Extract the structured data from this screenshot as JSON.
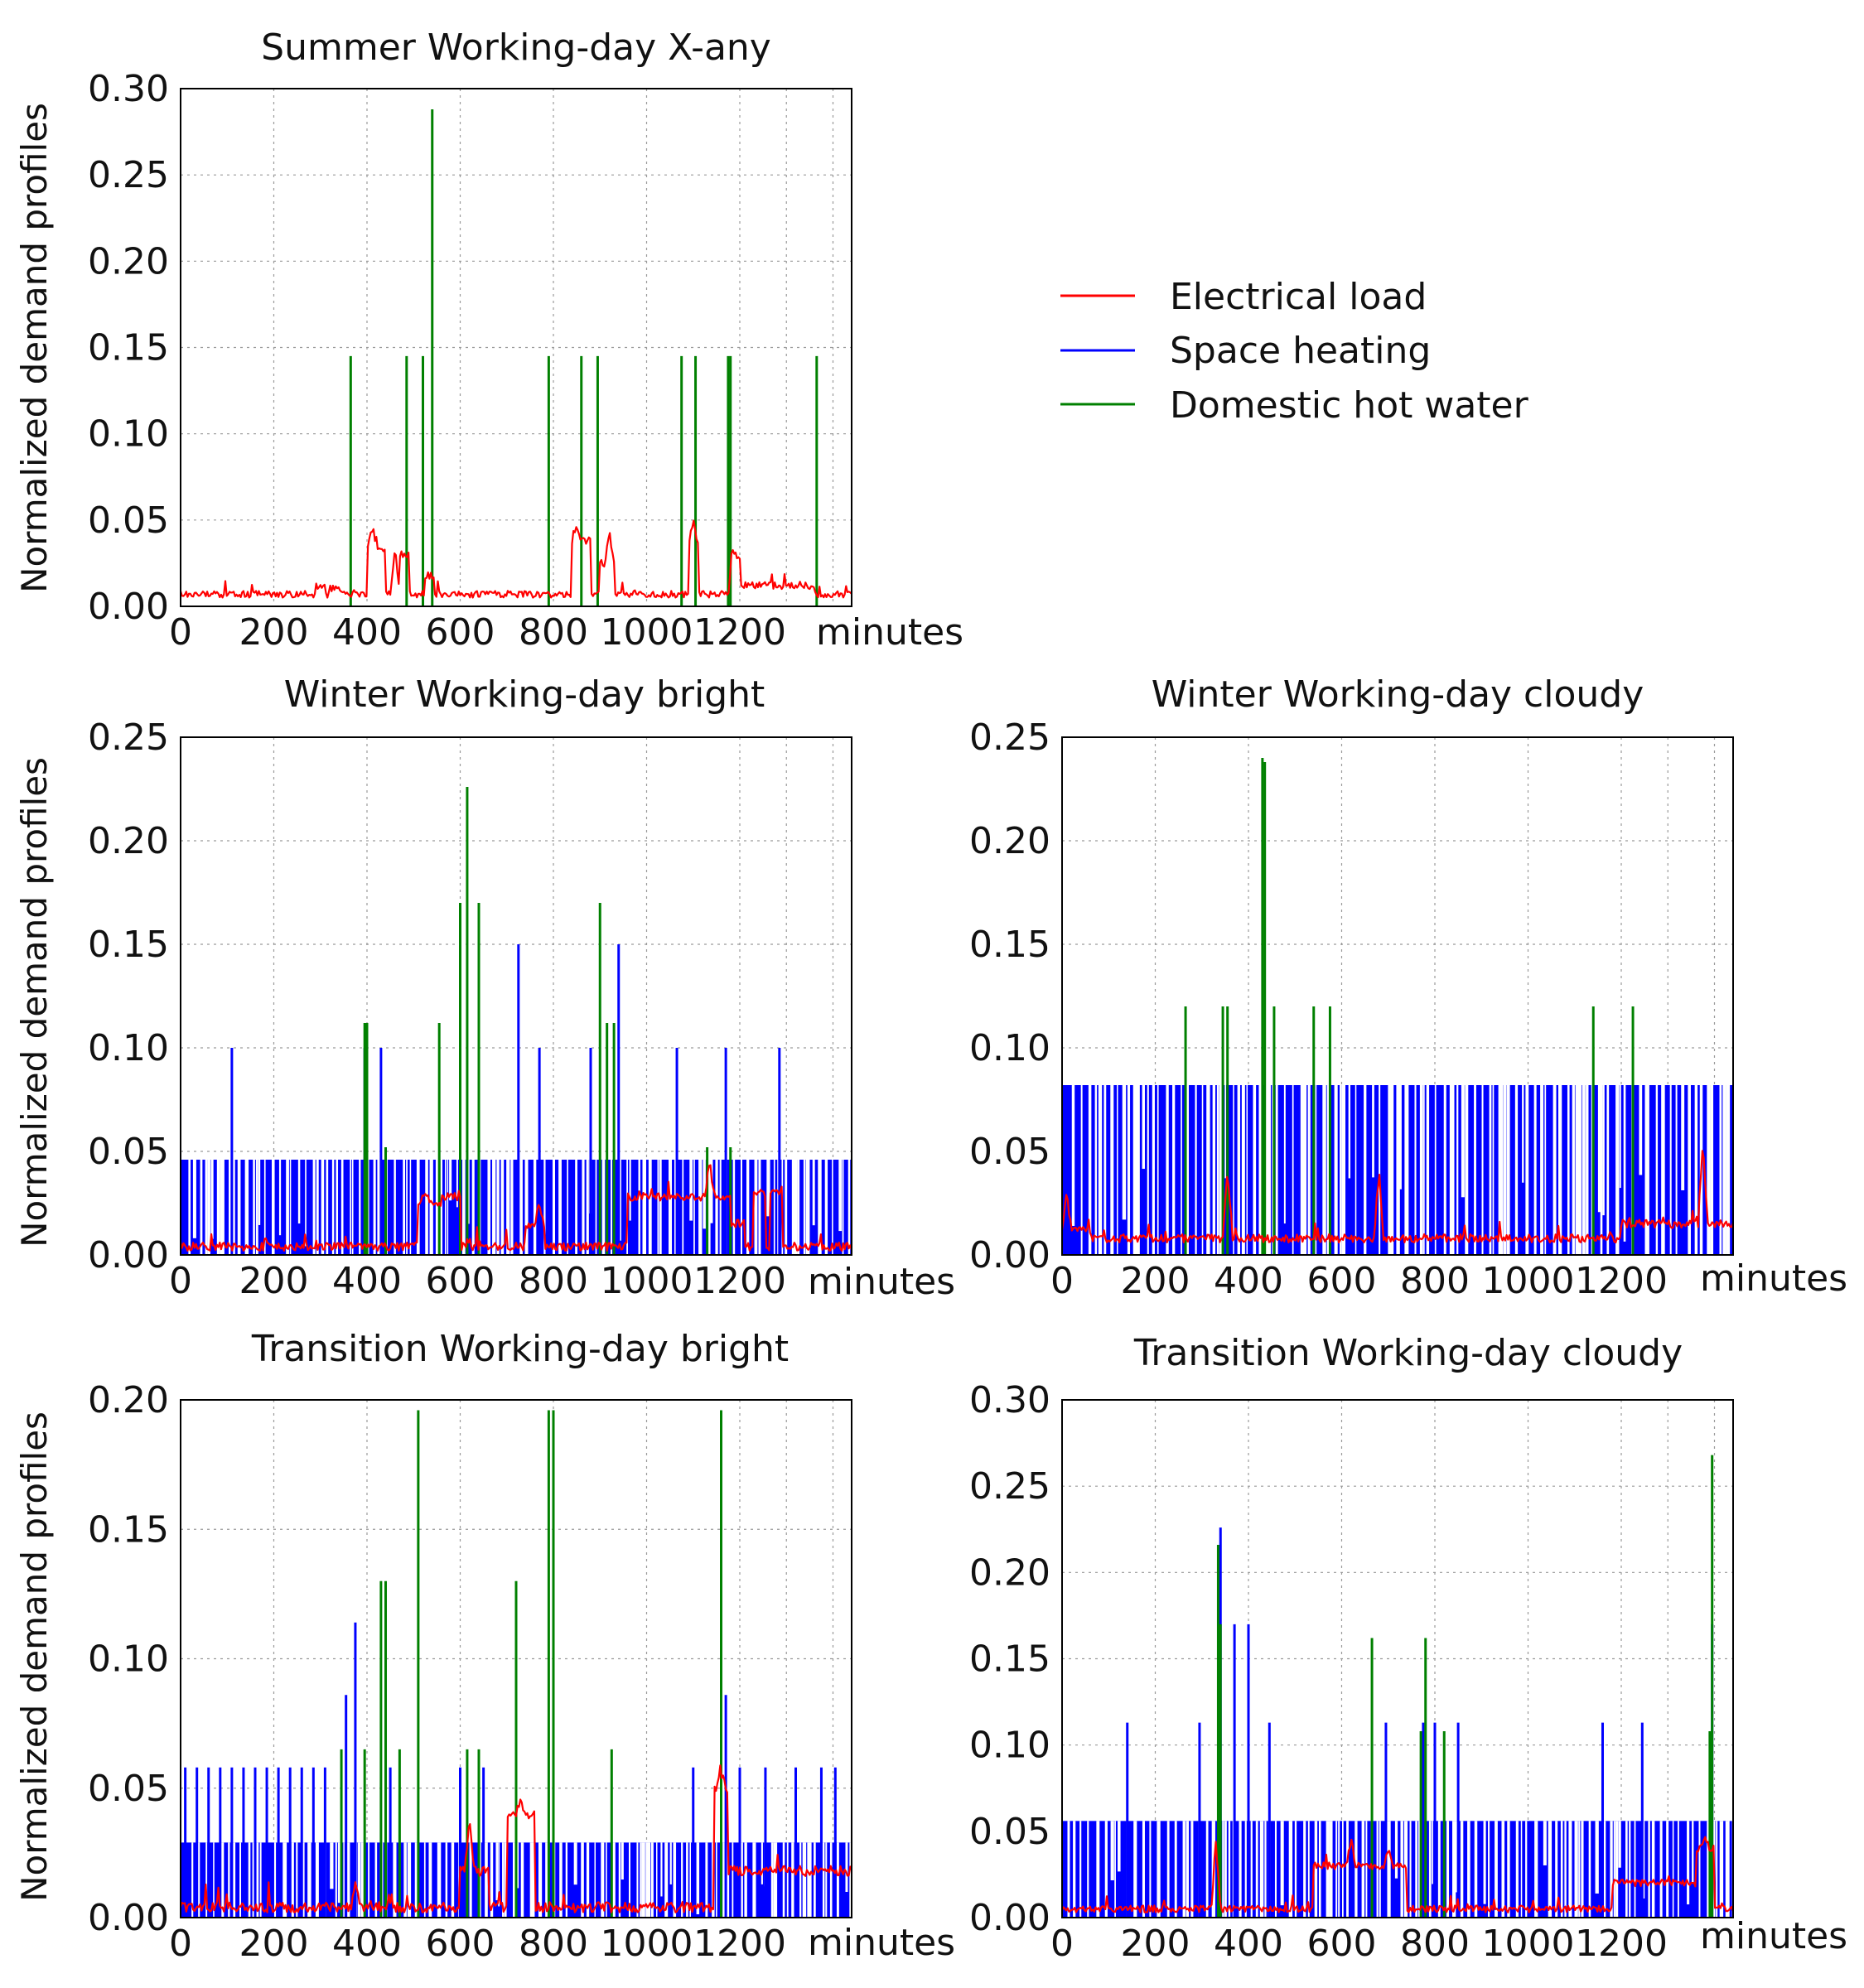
{
  "figure": {
    "ylabel": "Normalized demand profiles",
    "xunit": "minutes",
    "legend": [
      {
        "label": "Electrical load",
        "color": "#ff0000"
      },
      {
        "label": "Space heating",
        "color": "#0000ff"
      },
      {
        "label": "Domestic hot water",
        "color": "#008000"
      }
    ]
  },
  "chart_data": [
    {
      "id": "summer",
      "type": "line",
      "title": "Summer Working-day X-any",
      "xlabel": "minutes",
      "ylabel": "Normalized demand profiles",
      "xlim": [
        0,
        1440
      ],
      "ylim": [
        0,
        0.3
      ],
      "xticks": [
        0,
        200,
        400,
        600,
        800,
        1000,
        1200
      ],
      "yticks": [
        0.0,
        0.05,
        0.1,
        0.15,
        0.2,
        0.25,
        0.3
      ],
      "ytick_labels": [
        "0.00",
        "0.05",
        "0.10",
        "0.15",
        "0.20",
        "0.25",
        "0.30"
      ],
      "space_heating": null,
      "hot_water_spikes": [
        {
          "x": 365,
          "y": 0.145
        },
        {
          "x": 485,
          "y": 0.145
        },
        {
          "x": 520,
          "y": 0.145
        },
        {
          "x": 540,
          "y": 0.288
        },
        {
          "x": 790,
          "y": 0.145
        },
        {
          "x": 860,
          "y": 0.145
        },
        {
          "x": 895,
          "y": 0.145
        },
        {
          "x": 1075,
          "y": 0.145
        },
        {
          "x": 1105,
          "y": 0.145
        },
        {
          "x": 1175,
          "y": 0.145
        },
        {
          "x": 1180,
          "y": 0.145
        },
        {
          "x": 1365,
          "y": 0.145
        }
      ],
      "electrical_load": {
        "base": 0.007,
        "segments": [
          {
            "start": 290,
            "end": 310,
            "level": 0.012
          },
          {
            "start": 320,
            "end": 350,
            "level": 0.01
          },
          {
            "start": 400,
            "end": 440,
            "level": 0.032
          },
          {
            "start": 470,
            "end": 490,
            "level": 0.03
          },
          {
            "start": 525,
            "end": 545,
            "level": 0.018
          },
          {
            "start": 840,
            "end": 880,
            "level": 0.038
          },
          {
            "start": 900,
            "end": 930,
            "level": 0.025
          },
          {
            "start": 1090,
            "end": 1110,
            "level": 0.035
          },
          {
            "start": 1180,
            "end": 1200,
            "level": 0.028
          },
          {
            "start": 1200,
            "end": 1360,
            "level": 0.012
          }
        ],
        "peaks": [
          {
            "x": 410,
            "y": 0.045
          },
          {
            "x": 460,
            "y": 0.035
          },
          {
            "x": 850,
            "y": 0.048
          },
          {
            "x": 920,
            "y": 0.042
          },
          {
            "x": 1100,
            "y": 0.05
          },
          {
            "x": 1185,
            "y": 0.032
          }
        ]
      }
    },
    {
      "id": "winter-bright",
      "type": "line",
      "title": "Winter Working-day bright",
      "xlabel": "minutes",
      "ylabel": "Normalized demand profiles",
      "xlim": [
        0,
        1440
      ],
      "ylim": [
        0,
        0.25
      ],
      "xticks": [
        0,
        200,
        400,
        600,
        800,
        1000,
        1200
      ],
      "yticks": [
        0.0,
        0.05,
        0.1,
        0.15,
        0.2,
        0.25
      ],
      "ytick_labels": [
        "0.00",
        "0.05",
        "0.10",
        "0.15",
        "0.20",
        "0.25"
      ],
      "space_heating": {
        "level": 0.046,
        "spikes": [
          {
            "x": 110,
            "y": 0.1
          },
          {
            "x": 395,
            "y": 0.1
          },
          {
            "x": 430,
            "y": 0.1
          },
          {
            "x": 725,
            "y": 0.15
          },
          {
            "x": 770,
            "y": 0.1
          },
          {
            "x": 880,
            "y": 0.1
          },
          {
            "x": 940,
            "y": 0.15
          },
          {
            "x": 1065,
            "y": 0.1
          },
          {
            "x": 1170,
            "y": 0.1
          },
          {
            "x": 1285,
            "y": 0.1
          }
        ]
      },
      "hot_water_spikes": [
        {
          "x": 395,
          "y": 0.112
        },
        {
          "x": 400,
          "y": 0.112
        },
        {
          "x": 440,
          "y": 0.052
        },
        {
          "x": 555,
          "y": 0.112
        },
        {
          "x": 600,
          "y": 0.17
        },
        {
          "x": 615,
          "y": 0.226
        },
        {
          "x": 640,
          "y": 0.17
        },
        {
          "x": 900,
          "y": 0.17
        },
        {
          "x": 915,
          "y": 0.112
        },
        {
          "x": 930,
          "y": 0.112
        },
        {
          "x": 1130,
          "y": 0.052
        },
        {
          "x": 1180,
          "y": 0.052
        }
      ],
      "electrical_load": {
        "base": 0.004,
        "segments": [
          {
            "start": 510,
            "end": 560,
            "level": 0.025
          },
          {
            "start": 560,
            "end": 600,
            "level": 0.028
          },
          {
            "start": 740,
            "end": 780,
            "level": 0.015
          },
          {
            "start": 960,
            "end": 1010,
            "level": 0.028
          },
          {
            "start": 1010,
            "end": 1180,
            "level": 0.028
          },
          {
            "start": 1180,
            "end": 1210,
            "level": 0.015
          },
          {
            "start": 1230,
            "end": 1255,
            "level": 0.03
          },
          {
            "start": 1265,
            "end": 1290,
            "level": 0.03
          }
        ],
        "peaks": [
          {
            "x": 525,
            "y": 0.03
          },
          {
            "x": 770,
            "y": 0.025
          },
          {
            "x": 1135,
            "y": 0.045
          }
        ]
      }
    },
    {
      "id": "winter-cloudy",
      "type": "line",
      "title": "Winter Working-day cloudy",
      "xlabel": "minutes",
      "ylabel": "Normalized demand profiles",
      "xlim": [
        0,
        1440
      ],
      "ylim": [
        0,
        0.25
      ],
      "xticks": [
        0,
        200,
        400,
        600,
        800,
        1000,
        1200
      ],
      "yticks": [
        0.0,
        0.05,
        0.1,
        0.15,
        0.2,
        0.25
      ],
      "ytick_labels": [
        "0.00",
        "0.05",
        "0.10",
        "0.15",
        "0.20",
        "0.25"
      ],
      "space_heating": {
        "level": 0.082,
        "spikes": []
      },
      "hot_water_spikes": [
        {
          "x": 265,
          "y": 0.12
        },
        {
          "x": 345,
          "y": 0.12
        },
        {
          "x": 355,
          "y": 0.12
        },
        {
          "x": 430,
          "y": 0.24
        },
        {
          "x": 435,
          "y": 0.238
        },
        {
          "x": 455,
          "y": 0.12
        },
        {
          "x": 540,
          "y": 0.12
        },
        {
          "x": 575,
          "y": 0.12
        },
        {
          "x": 1140,
          "y": 0.12
        },
        {
          "x": 1225,
          "y": 0.12
        }
      ],
      "electrical_load": {
        "base": 0.008,
        "segments": [
          {
            "start": 0,
            "end": 60,
            "level": 0.012
          },
          {
            "start": 1200,
            "end": 1440,
            "level": 0.015
          }
        ],
        "peaks": [
          {
            "x": 10,
            "y": 0.03
          },
          {
            "x": 355,
            "y": 0.04
          },
          {
            "x": 680,
            "y": 0.04
          },
          {
            "x": 1375,
            "y": 0.055
          }
        ]
      }
    },
    {
      "id": "transition-bright",
      "type": "line",
      "title": "Transition Working-day bright",
      "xlabel": "minutes",
      "ylabel": "Normalized demand profiles",
      "xlim": [
        0,
        1440
      ],
      "ylim": [
        0,
        0.2
      ],
      "xticks": [
        0,
        200,
        400,
        600,
        800,
        1000,
        1200
      ],
      "yticks": [
        0.0,
        0.05,
        0.1,
        0.15,
        0.2
      ],
      "ytick_labels": [
        "0.00",
        "0.05",
        "0.10",
        "0.15",
        "0.20"
      ],
      "space_heating": {
        "level": 0.029,
        "spikes": [
          {
            "x": 10,
            "y": 0.058
          },
          {
            "x": 35,
            "y": 0.058
          },
          {
            "x": 60,
            "y": 0.058
          },
          {
            "x": 85,
            "y": 0.058
          },
          {
            "x": 110,
            "y": 0.058
          },
          {
            "x": 135,
            "y": 0.058
          },
          {
            "x": 160,
            "y": 0.058
          },
          {
            "x": 185,
            "y": 0.058
          },
          {
            "x": 210,
            "y": 0.058
          },
          {
            "x": 235,
            "y": 0.058
          },
          {
            "x": 260,
            "y": 0.058
          },
          {
            "x": 285,
            "y": 0.058
          },
          {
            "x": 310,
            "y": 0.058
          },
          {
            "x": 355,
            "y": 0.086
          },
          {
            "x": 375,
            "y": 0.114
          },
          {
            "x": 450,
            "y": 0.058
          },
          {
            "x": 600,
            "y": 0.058
          },
          {
            "x": 650,
            "y": 0.058
          },
          {
            "x": 1100,
            "y": 0.058
          },
          {
            "x": 1170,
            "y": 0.086
          },
          {
            "x": 1200,
            "y": 0.058
          },
          {
            "x": 1255,
            "y": 0.058
          },
          {
            "x": 1320,
            "y": 0.058
          },
          {
            "x": 1375,
            "y": 0.058
          },
          {
            "x": 1405,
            "y": 0.058
          }
        ]
      },
      "hot_water_spikes": [
        {
          "x": 345,
          "y": 0.065
        },
        {
          "x": 395,
          "y": 0.065
        },
        {
          "x": 430,
          "y": 0.13
        },
        {
          "x": 440,
          "y": 0.13
        },
        {
          "x": 470,
          "y": 0.065
        },
        {
          "x": 510,
          "y": 0.196
        },
        {
          "x": 615,
          "y": 0.065
        },
        {
          "x": 640,
          "y": 0.065
        },
        {
          "x": 720,
          "y": 0.13
        },
        {
          "x": 790,
          "y": 0.196
        },
        {
          "x": 800,
          "y": 0.196
        },
        {
          "x": 925,
          "y": 0.065
        },
        {
          "x": 1160,
          "y": 0.196
        }
      ],
      "electrical_load": {
        "base": 0.004,
        "segments": [
          {
            "start": 600,
            "end": 660,
            "level": 0.018
          },
          {
            "start": 700,
            "end": 760,
            "level": 0.04
          },
          {
            "start": 1145,
            "end": 1175,
            "level": 0.05
          },
          {
            "start": 1175,
            "end": 1440,
            "level": 0.018
          }
        ],
        "peaks": [
          {
            "x": 375,
            "y": 0.015
          },
          {
            "x": 620,
            "y": 0.04
          },
          {
            "x": 730,
            "y": 0.045
          },
          {
            "x": 1160,
            "y": 0.055
          }
        ]
      }
    },
    {
      "id": "transition-cloudy",
      "type": "line",
      "title": "Transition Working-day cloudy",
      "xlabel": "minutes",
      "ylabel": "Normalized demand profiles",
      "xlim": [
        0,
        1440
      ],
      "ylim": [
        0,
        0.3
      ],
      "xticks": [
        0,
        200,
        400,
        600,
        800,
        1000,
        1200
      ],
      "yticks": [
        0.0,
        0.05,
        0.1,
        0.15,
        0.2,
        0.25,
        0.3
      ],
      "ytick_labels": [
        "0.00",
        "0.05",
        "0.10",
        "0.15",
        "0.20",
        "0.25",
        "0.30"
      ],
      "space_heating": {
        "level": 0.056,
        "end": 1430,
        "spikes": [
          {
            "x": 140,
            "y": 0.113
          },
          {
            "x": 295,
            "y": 0.113
          },
          {
            "x": 340,
            "y": 0.226
          },
          {
            "x": 370,
            "y": 0.17
          },
          {
            "x": 400,
            "y": 0.17
          },
          {
            "x": 445,
            "y": 0.113
          },
          {
            "x": 695,
            "y": 0.113
          },
          {
            "x": 775,
            "y": 0.113
          },
          {
            "x": 800,
            "y": 0.113
          },
          {
            "x": 850,
            "y": 0.113
          },
          {
            "x": 1160,
            "y": 0.113
          },
          {
            "x": 1245,
            "y": 0.113
          },
          {
            "x": 1395,
            "y": 0.17
          },
          {
            "x": 1435,
            "y": 0.056
          }
        ]
      },
      "hot_water_spikes": [
        {
          "x": 335,
          "y": 0.216
        },
        {
          "x": 340,
          "y": 0.17
        },
        {
          "x": 665,
          "y": 0.162
        },
        {
          "x": 770,
          "y": 0.108
        },
        {
          "x": 780,
          "y": 0.162
        },
        {
          "x": 820,
          "y": 0.108
        },
        {
          "x": 1395,
          "y": 0.268
        },
        {
          "x": 1390,
          "y": 0.108
        }
      ],
      "electrical_load": {
        "base": 0.005,
        "segments": [
          {
            "start": 540,
            "end": 740,
            "level": 0.03
          },
          {
            "start": 1180,
            "end": 1360,
            "level": 0.02
          },
          {
            "start": 1360,
            "end": 1400,
            "level": 0.04
          }
        ],
        "peaks": [
          {
            "x": 330,
            "y": 0.045
          },
          {
            "x": 620,
            "y": 0.045
          },
          {
            "x": 700,
            "y": 0.04
          },
          {
            "x": 1380,
            "y": 0.045
          }
        ]
      }
    }
  ]
}
